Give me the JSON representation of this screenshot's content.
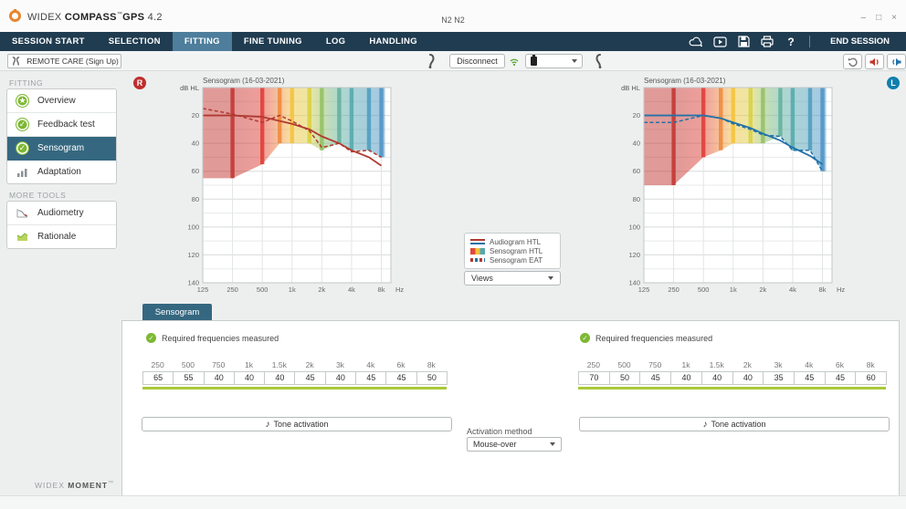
{
  "titlebar": {
    "brand": "WIDEX",
    "product": "COMPASS",
    "tm": "™",
    "suffix": "GPS",
    "version": "4.2",
    "center": "N2 N2",
    "minimize": "–",
    "restore": "□",
    "close": "×"
  },
  "menu": {
    "tabs": [
      {
        "label": "SESSION START",
        "active": false
      },
      {
        "label": "SELECTION",
        "active": false
      },
      {
        "label": "FITTING",
        "active": true
      },
      {
        "label": "FINE TUNING",
        "active": false
      },
      {
        "label": "LOG",
        "active": false
      },
      {
        "label": "HANDLING",
        "active": false
      }
    ],
    "icons": [
      "cloud-icon",
      "video-icon",
      "save-icon",
      "print-icon",
      "help-icon"
    ],
    "help": "?",
    "end_session": "END SESSION"
  },
  "toolbar": {
    "remote_care": "REMOTE CARE (Sign Up)",
    "disconnect": "Disconnect"
  },
  "sidebar": {
    "fitting_label": "FITTING",
    "fitting_items": [
      {
        "label": "Overview",
        "icon": "star"
      },
      {
        "label": "Feedback test",
        "icon": "check"
      },
      {
        "label": "Sensogram",
        "icon": "check",
        "selected": true
      },
      {
        "label": "Adaptation",
        "icon": "bars"
      }
    ],
    "more_tools_label": "MORE TOOLS",
    "tools": [
      {
        "label": "Audiometry",
        "icon": "line-chart"
      },
      {
        "label": "Rationale",
        "icon": "area-chart"
      }
    ]
  },
  "ears": {
    "right": "R",
    "left": "L"
  },
  "legend": {
    "items": [
      {
        "label": "Audiogram HTL"
      },
      {
        "label": "Sensogram HTL"
      },
      {
        "label": "Sensogram EAT"
      }
    ],
    "views": "Views"
  },
  "bottom": {
    "tab": "Sensogram",
    "check": "✓",
    "status": "Required frequencies measured",
    "note": "♪",
    "tone": "Tone activation",
    "activation_label": "Activation method",
    "activation_value": "Mouse-over",
    "frequencies": [
      "250",
      "500",
      "750",
      "1k",
      "1.5k",
      "2k",
      "3k",
      "4k",
      "6k",
      "8k"
    ],
    "left_values": [
      "65",
      "55",
      "40",
      "40",
      "40",
      "45",
      "40",
      "45",
      "45",
      "50"
    ],
    "right_values": [
      "70",
      "50",
      "45",
      "40",
      "40",
      "40",
      "35",
      "45",
      "45",
      "60"
    ]
  },
  "footer": {
    "brand": "WIDEX",
    "product": "MOMENT",
    "tm": "™"
  },
  "colors": {
    "menubar": "#203c50",
    "active_tab": "#4e7e9b",
    "selected_item": "#356880",
    "green": "#7db832",
    "underline_green": "#a9c938",
    "right_ear": "#b03a31",
    "left_ear": "#2272a8"
  },
  "chart_data": [
    {
      "type": "area",
      "ear": "right",
      "title": "Sensogram (16-03-2021)",
      "ylabel": "dB HL",
      "xlabel": "Hz",
      "ylim": [
        0,
        140
      ],
      "y_ticks": [
        20,
        40,
        60,
        80,
        100,
        120,
        140
      ],
      "x_ticks": [
        "125",
        "250",
        "500",
        "1k",
        "2k",
        "4k",
        "8k"
      ],
      "x_tick_freqs": [
        125,
        250,
        500,
        1000,
        2000,
        4000,
        8000
      ],
      "frequencies": [
        250,
        500,
        750,
        1000,
        1500,
        2000,
        3000,
        4000,
        6000,
        8000
      ],
      "band_colors": [
        "#c13531",
        "#df3e35",
        "#ee8a3c",
        "#f2c33e",
        "#d9cf43",
        "#93c063",
        "#62b09c",
        "#55a8ae",
        "#4f9dbd",
        "#4e94c6"
      ],
      "sensogram_htl": [
        65,
        55,
        40,
        40,
        40,
        45,
        40,
        45,
        45,
        50
      ],
      "audiogram_htl": {
        "x": [
          125,
          250,
          500,
          750,
          1000,
          1500,
          2000,
          3000,
          4000,
          6000,
          8000
        ],
        "y": [
          20,
          20,
          21,
          24,
          26,
          30,
          35,
          40,
          45,
          50,
          56
        ]
      },
      "sensogram_eat": {
        "x": [
          125,
          250,
          500,
          750,
          1000,
          1500,
          2000,
          3000,
          4000,
          6000,
          8000
        ],
        "y": [
          15,
          19,
          25,
          20,
          24,
          31,
          43,
          40,
          46,
          45,
          50
        ]
      },
      "line_color": "#b03a31",
      "grid": true,
      "legend_position": "center-between-charts"
    },
    {
      "type": "area",
      "ear": "left",
      "title": "Sensogram (16-03-2021)",
      "ylabel": "dB HL",
      "xlabel": "Hz",
      "ylim": [
        0,
        140
      ],
      "y_ticks": [
        20,
        40,
        60,
        80,
        100,
        120,
        140
      ],
      "x_ticks": [
        "125",
        "250",
        "500",
        "1k",
        "2k",
        "4k",
        "8k"
      ],
      "x_tick_freqs": [
        125,
        250,
        500,
        1000,
        2000,
        4000,
        8000
      ],
      "frequencies": [
        250,
        500,
        750,
        1000,
        1500,
        2000,
        3000,
        4000,
        6000,
        8000
      ],
      "band_colors": [
        "#c13531",
        "#df3e35",
        "#ee8a3c",
        "#f2c33e",
        "#d9cf43",
        "#93c063",
        "#62b09c",
        "#55a8ae",
        "#4f9dbd",
        "#4e94c6"
      ],
      "sensogram_htl": [
        70,
        50,
        45,
        40,
        40,
        40,
        35,
        45,
        45,
        60
      ],
      "audiogram_htl": {
        "x": [
          125,
          250,
          500,
          750,
          1000,
          1500,
          2000,
          3000,
          4000,
          6000,
          8000
        ],
        "y": [
          20,
          20,
          20,
          22,
          25,
          29,
          33,
          38,
          43,
          49,
          55
        ]
      },
      "sensogram_eat": {
        "x": [
          125,
          250,
          500,
          750,
          1000,
          1500,
          2000,
          3000,
          4000,
          6000,
          8000
        ],
        "y": [
          25,
          25,
          20,
          22,
          26,
          30,
          34,
          35,
          45,
          45,
          60
        ]
      },
      "line_color": "#2272a8",
      "grid": true,
      "legend_position": "center-between-charts"
    }
  ]
}
